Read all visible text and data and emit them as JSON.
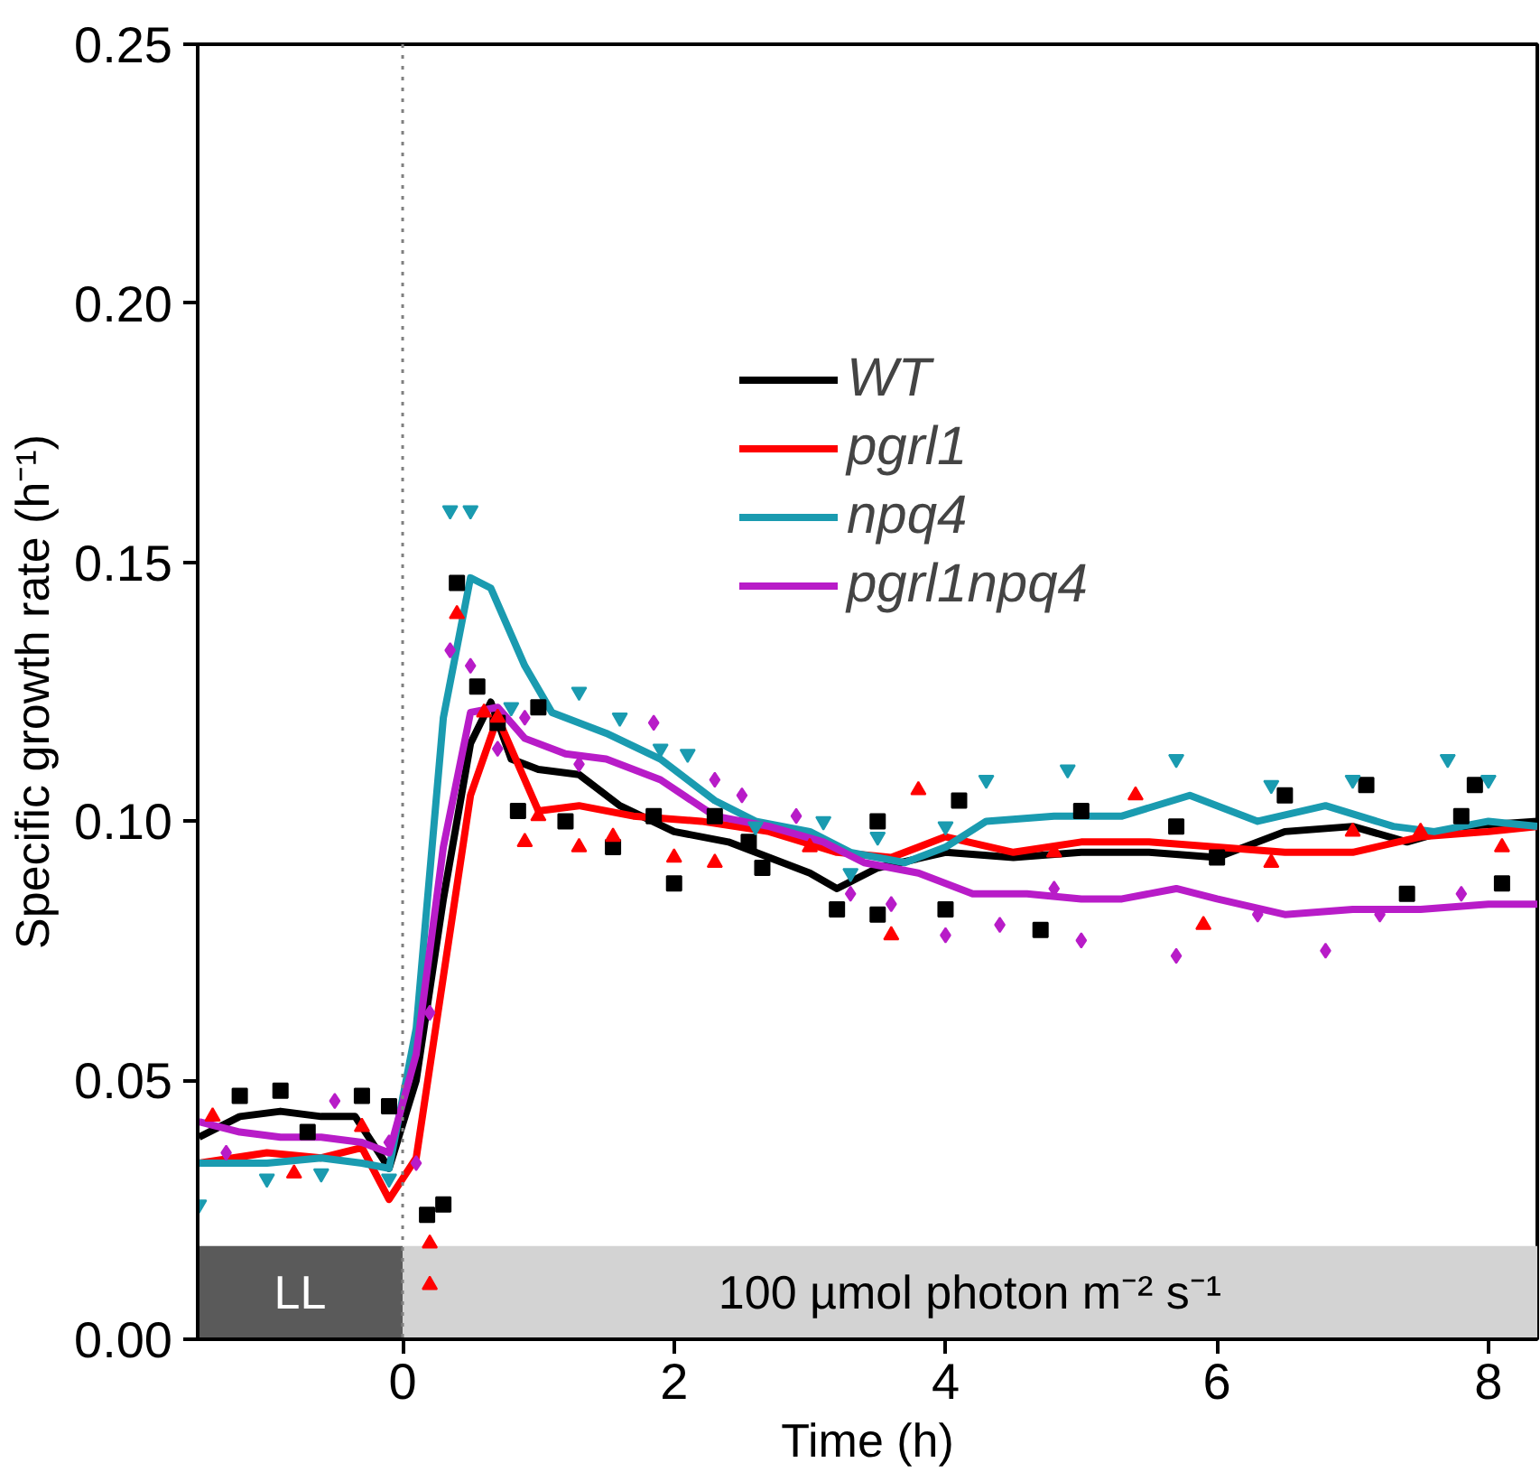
{
  "chart_data": {
    "type": "line",
    "xlabel": "Time (h)",
    "ylabel": "Specific growth rate (h⁻¹)",
    "xlim": [
      -1.51,
      8.36
    ],
    "xticks": [
      0,
      2,
      4,
      6,
      8
    ],
    "ylim": [
      0,
      0.25
    ],
    "yticks": [
      {
        "value": 0,
        "label": "0.00"
      },
      {
        "value": 0.05,
        "label": "0.05"
      },
      {
        "value": 0.1,
        "label": "0.10"
      },
      {
        "value": 0.15,
        "label": "0.15"
      },
      {
        "value": 0.2,
        "label": "0.20"
      },
      {
        "value": 0.25,
        "label": "0.25"
      }
    ],
    "grid": false,
    "legend": "top right",
    "line_style": "solid",
    "ref_lines": [
      {
        "axis": "x",
        "value": 0,
        "color": "#808080",
        "line_style": "dotted"
      }
    ],
    "bands": [
      {
        "axis": "x",
        "from": -1.51,
        "to": 0,
        "label": "LL",
        "color": "#5a5a5a"
      },
      {
        "axis": "x",
        "from": 0,
        "to": 8.36,
        "label": "100 µmol photon m⁻² s⁻¹",
        "color": "#d3d3d3"
      }
    ],
    "series": [
      {
        "type": "scatter",
        "marker": "square",
        "color": "#000000",
        "x": [
          -1.2,
          -0.9,
          -0.7,
          -0.3,
          -0.1,
          0.18,
          0.3,
          0.4,
          0.55,
          0.7,
          0.85,
          1.0,
          1.2,
          1.55,
          1.85,
          2.0,
          2.3,
          2.55,
          2.65,
          3.2,
          3.5,
          3.5,
          4.0,
          4.1,
          4.7,
          5.0,
          5.7,
          6.0,
          6.5,
          7.1,
          7.4,
          7.8,
          7.9,
          8.1
        ],
        "values": [
          0.047,
          0.048,
          0.04,
          0.047,
          0.045,
          0.024,
          0.026,
          0.146,
          0.126,
          0.119,
          0.102,
          0.122,
          0.1,
          0.095,
          0.101,
          0.088,
          0.101,
          0.096,
          0.091,
          0.083,
          0.1,
          0.082,
          0.083,
          0.104,
          0.079,
          0.102,
          0.099,
          0.093,
          0.105,
          0.107,
          0.086,
          0.101,
          0.107,
          0.088
        ]
      },
      {
        "type": "scatter",
        "marker": "triangle",
        "color": "#ff0000",
        "x": [
          -1.4,
          -0.8,
          -0.3,
          0.2,
          0.2,
          0.4,
          0.6,
          0.7,
          0.9,
          1.0,
          1.3,
          1.55,
          2.0,
          2.3,
          3.0,
          3.6,
          3.8,
          4.8,
          5.4,
          5.9,
          6.4,
          7.0,
          7.5,
          8.1
        ],
        "values": [
          0.043,
          0.032,
          0.041,
          0.0185,
          0.0105,
          0.14,
          0.121,
          0.12,
          0.096,
          0.101,
          0.095,
          0.097,
          0.093,
          0.092,
          0.095,
          0.078,
          0.106,
          0.094,
          0.105,
          0.08,
          0.092,
          0.098,
          0.098,
          0.095
        ]
      },
      {
        "type": "scatter",
        "marker": "triangle_down",
        "color": "#1a9bb0",
        "x": [
          -1.5,
          -1.0,
          -0.6,
          -0.1,
          0.35,
          0.5,
          0.8,
          1.3,
          1.6,
          1.9,
          2.1,
          2.6,
          3.1,
          3.3,
          3.5,
          4.0,
          4.3,
          4.9,
          5.7,
          6.4,
          7.0,
          7.7,
          8.0
        ],
        "values": [
          0.026,
          0.031,
          0.032,
          0.031,
          0.16,
          0.16,
          0.122,
          0.125,
          0.12,
          0.114,
          0.113,
          0.099,
          0.1,
          0.09,
          0.097,
          0.099,
          0.108,
          0.11,
          0.112,
          0.107,
          0.108,
          0.112,
          0.108
        ]
      },
      {
        "type": "scatter",
        "marker": "diamond",
        "color": "#b81cc8",
        "x": [
          -1.3,
          -0.5,
          -0.1,
          0.1,
          0.2,
          0.35,
          0.5,
          0.7,
          0.9,
          1.3,
          1.85,
          2.3,
          2.5,
          2.9,
          3.3,
          3.6,
          4.0,
          4.4,
          4.8,
          5.0,
          5.7,
          6.3,
          6.8,
          7.2,
          7.8
        ],
        "values": [
          0.036,
          0.046,
          0.038,
          0.034,
          0.063,
          0.133,
          0.13,
          0.114,
          0.12,
          0.111,
          0.119,
          0.108,
          0.105,
          0.101,
          0.086,
          0.084,
          0.078,
          0.08,
          0.087,
          0.077,
          0.074,
          0.082,
          0.075,
          0.082,
          0.086
        ]
      },
      {
        "name": "WT",
        "color": "#000000",
        "x": [
          -1.5,
          -1.2,
          -0.9,
          -0.6,
          -0.35,
          -0.1,
          0.1,
          0.3,
          0.5,
          0.65,
          0.8,
          1.0,
          1.3,
          1.6,
          2.0,
          2.4,
          2.7,
          3.0,
          3.2,
          3.5,
          4.0,
          4.5,
          5.0,
          5.5,
          6.0,
          6.5,
          7.0,
          7.4,
          7.8,
          8.36
        ],
        "values": [
          0.039,
          0.043,
          0.044,
          0.043,
          0.043,
          0.033,
          0.05,
          0.085,
          0.115,
          0.123,
          0.112,
          0.11,
          0.109,
          0.103,
          0.098,
          0.096,
          0.093,
          0.09,
          0.087,
          0.091,
          0.094,
          0.093,
          0.094,
          0.094,
          0.093,
          0.098,
          0.099,
          0.096,
          0.099,
          0.1
        ]
      },
      {
        "name": "pgrl1",
        "color": "#ff0000",
        "x": [
          -1.5,
          -1.0,
          -0.6,
          -0.3,
          -0.1,
          0.1,
          0.3,
          0.5,
          0.7,
          0.9,
          1.0,
          1.3,
          1.7,
          2.2,
          2.7,
          3.2,
          3.6,
          4.0,
          4.5,
          5.0,
          5.5,
          6.0,
          6.5,
          7.0,
          7.5,
          8.0,
          8.36
        ],
        "values": [
          0.034,
          0.036,
          0.035,
          0.037,
          0.027,
          0.035,
          0.07,
          0.105,
          0.12,
          0.108,
          0.102,
          0.103,
          0.101,
          0.1,
          0.098,
          0.094,
          0.093,
          0.097,
          0.094,
          0.096,
          0.096,
          0.095,
          0.094,
          0.094,
          0.097,
          0.098,
          0.099
        ]
      },
      {
        "name": "npq4",
        "color": "#1a9bb0",
        "x": [
          -1.5,
          -1.0,
          -0.6,
          -0.3,
          -0.1,
          0.1,
          0.3,
          0.5,
          0.65,
          0.9,
          1.1,
          1.5,
          1.9,
          2.3,
          2.6,
          3.0,
          3.3,
          3.7,
          4.0,
          4.3,
          4.8,
          5.3,
          5.8,
          6.3,
          6.8,
          7.3,
          7.6,
          8.0,
          8.36
        ],
        "values": [
          0.034,
          0.034,
          0.035,
          0.034,
          0.033,
          0.06,
          0.12,
          0.147,
          0.145,
          0.13,
          0.121,
          0.117,
          0.112,
          0.104,
          0.1,
          0.098,
          0.094,
          0.092,
          0.095,
          0.1,
          0.101,
          0.101,
          0.105,
          0.1,
          0.103,
          0.099,
          0.098,
          0.1,
          0.099
        ]
      },
      {
        "name": "pgrl1npq4",
        "color": "#b81cc8",
        "x": [
          -1.5,
          -1.2,
          -0.9,
          -0.6,
          -0.3,
          -0.1,
          0.1,
          0.3,
          0.5,
          0.7,
          0.9,
          1.2,
          1.5,
          1.9,
          2.3,
          2.7,
          3.1,
          3.4,
          3.8,
          4.2,
          4.6,
          5.0,
          5.3,
          5.7,
          6.0,
          6.5,
          7.0,
          7.5,
          8.0,
          8.36
        ],
        "values": [
          0.042,
          0.04,
          0.039,
          0.039,
          0.038,
          0.036,
          0.055,
          0.095,
          0.121,
          0.122,
          0.116,
          0.113,
          0.112,
          0.108,
          0.101,
          0.099,
          0.096,
          0.092,
          0.09,
          0.086,
          0.086,
          0.085,
          0.085,
          0.087,
          0.085,
          0.082,
          0.083,
          0.083,
          0.084,
          0.084
        ]
      }
    ]
  }
}
